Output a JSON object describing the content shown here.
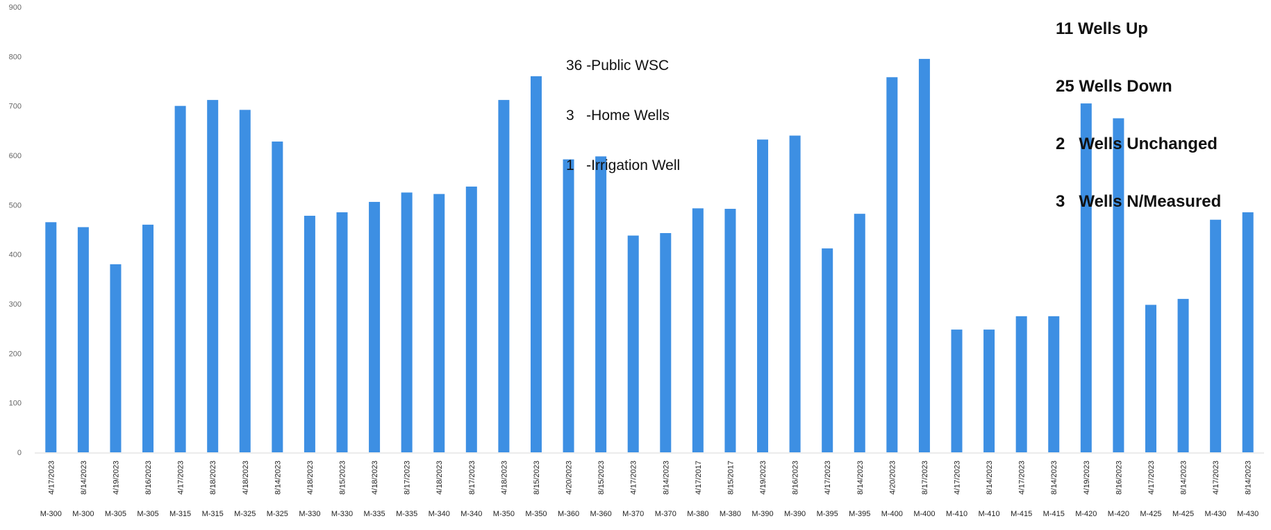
{
  "chart_data": {
    "type": "bar",
    "title": "",
    "xlabel": "",
    "ylabel": "",
    "ylim": [
      0,
      900
    ],
    "yticks": [
      0,
      100,
      200,
      300,
      400,
      500,
      600,
      700,
      800,
      900
    ],
    "grid": false,
    "legend": "none",
    "bar_color": "#3d8fe3",
    "categories": [
      {
        "date": "4/17/2023",
        "well": "M-300"
      },
      {
        "date": "8/14/2023",
        "well": "M-300"
      },
      {
        "date": "4/19/2023",
        "well": "M-305"
      },
      {
        "date": "8/16/2023",
        "well": "M-305"
      },
      {
        "date": "4/17/2023",
        "well": "M-315"
      },
      {
        "date": "8/18/2023",
        "well": "M-315"
      },
      {
        "date": "4/18/2023",
        "well": "M-325"
      },
      {
        "date": "8/14/2023",
        "well": "M-325"
      },
      {
        "date": "4/18/2023",
        "well": "M-330"
      },
      {
        "date": "8/15/2023",
        "well": "M-330"
      },
      {
        "date": "4/18/2023",
        "well": "M-335"
      },
      {
        "date": "8/17/2023",
        "well": "M-335"
      },
      {
        "date": "4/18/2023",
        "well": "M-340"
      },
      {
        "date": "8/17/2023",
        "well": "M-340"
      },
      {
        "date": "4/18/2023",
        "well": "M-350"
      },
      {
        "date": "8/15/2023",
        "well": "M-350"
      },
      {
        "date": "4/20/2023",
        "well": "M-360"
      },
      {
        "date": "8/15/2023",
        "well": "M-360"
      },
      {
        "date": "4/17/2023",
        "well": "M-370"
      },
      {
        "date": "8/14/2023",
        "well": "M-370"
      },
      {
        "date": "4/17/2017",
        "well": "M-380"
      },
      {
        "date": "8/15/2017",
        "well": "M-380"
      },
      {
        "date": "4/19/2023",
        "well": "M-390"
      },
      {
        "date": "8/16/2023",
        "well": "M-390"
      },
      {
        "date": "4/17/2023",
        "well": "M-395"
      },
      {
        "date": "8/14/2023",
        "well": "M-395"
      },
      {
        "date": "4/20/2023",
        "well": "M-400"
      },
      {
        "date": "8/17/2023",
        "well": "M-400"
      },
      {
        "date": "4/17/2023",
        "well": "M-410"
      },
      {
        "date": "8/14/2023",
        "well": "M-410"
      },
      {
        "date": "4/17/2023",
        "well": "M-415"
      },
      {
        "date": "8/14/2023",
        "well": "M-415"
      },
      {
        "date": "4/19/2023",
        "well": "M-420"
      },
      {
        "date": "8/16/2023",
        "well": "M-420"
      },
      {
        "date": "4/17/2023",
        "well": "M-425"
      },
      {
        "date": "8/14/2023",
        "well": "M-425"
      },
      {
        "date": "4/17/2023",
        "well": "M-430"
      },
      {
        "date": "8/14/2023",
        "well": "M-430"
      }
    ],
    "values": [
      465,
      455,
      380,
      460,
      700,
      712,
      692,
      628,
      478,
      485,
      506,
      525,
      522,
      537,
      712,
      760,
      592,
      598,
      438,
      443,
      493,
      492,
      632,
      640,
      412,
      482,
      758,
      795,
      248,
      248,
      275,
      275,
      705,
      675,
      298,
      310,
      470,
      485
    ],
    "annotations": {
      "left": [
        "36 -Public WSC",
        "3   -Home Wells",
        "1   -Irrigation Well"
      ],
      "right": [
        "11 Wells Up",
        "25 Wells Down",
        "2   Wells Unchanged",
        "3   Wells N/Measured"
      ]
    }
  }
}
